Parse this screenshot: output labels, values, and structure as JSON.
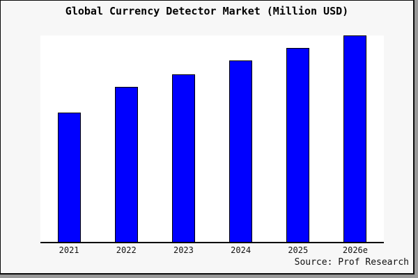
{
  "title": "Global Currency Detector Market (Million USD)",
  "source_credit": "Source: Prof Research",
  "colors": {
    "bar_fill": "#0000ff",
    "bar_border": "#000000",
    "axis": "#000000",
    "canvas_background": "#f7f7f7",
    "plot_background": "#ffffff",
    "frame_border": "#0a0a0a",
    "edge_shadow": "#999999"
  },
  "chart_data": {
    "type": "bar",
    "title": "Global Currency Detector Market (Million USD)",
    "categories": [
      "2021",
      "2022",
      "2023",
      "2024",
      "2025",
      "2026e"
    ],
    "values": [
      62.5,
      75.0,
      81.2,
      87.9,
      94.1,
      100
    ],
    "xlabel": "",
    "ylabel": "",
    "ylim": [
      0,
      100
    ],
    "value_scale_note": "no y-axis ticks or value labels shown; values are relative bar heights with 2026e = 100",
    "grid": false,
    "legend": false,
    "y_axis_visible": false
  }
}
